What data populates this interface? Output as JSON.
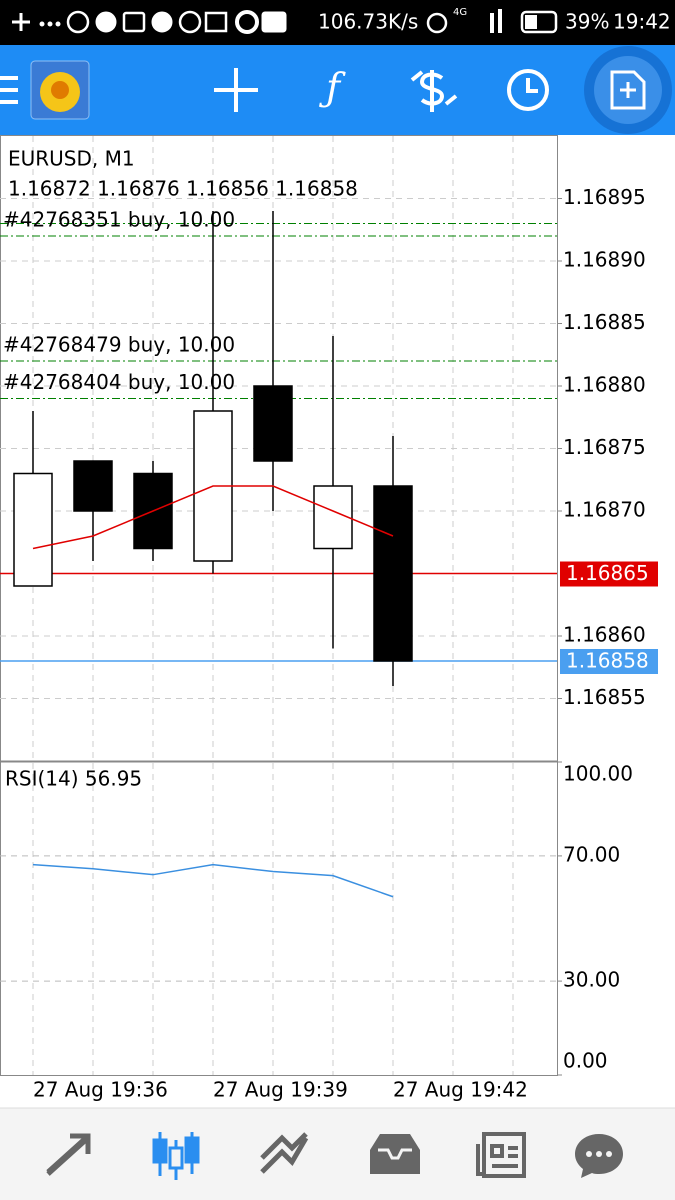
{
  "status_bar": {
    "speed": "106.73K/s",
    "network": "4G",
    "battery": "39%",
    "time": "19:42"
  },
  "chart_data": [
    {
      "type": "candlestick",
      "title": "EURUSD, M1",
      "ohlc_label": "1.16872 1.16876 1.16856 1.16858",
      "categories": [
        "27 Aug 19:36",
        null,
        null,
        "27 Aug 19:39",
        null,
        null,
        "27 Aug 19:42"
      ],
      "open": [
        1.16864,
        1.16874,
        1.16873,
        1.16866,
        1.1688,
        1.16867,
        1.16872
      ],
      "high": [
        1.16878,
        1.16874,
        1.16874,
        1.16894,
        1.16894,
        1.16884,
        1.16876
      ],
      "low": [
        1.16864,
        1.16866,
        1.16866,
        1.16865,
        1.1687,
        1.16859,
        1.16856
      ],
      "close": [
        1.16873,
        1.1687,
        1.16867,
        1.16878,
        1.16874,
        1.16872,
        1.16858
      ],
      "ma": {
        "color": "#e00000",
        "values": [
          1.16867,
          1.16868,
          1.1687,
          1.16872,
          1.16872,
          1.1687,
          1.16868
        ]
      },
      "ylim": [
        1.1685,
        1.169
      ],
      "yticks": [
        1.16895,
        {
          "value": 1.1689,
          "label": "1.16890"
        },
        1.16885,
        {
          "value": 1.1688,
          "label": "1.16880"
        },
        1.16875,
        {
          "value": 1.1687,
          "label": "1.16870"
        },
        {
          "value": 1.1686,
          "label": "1.16860"
        },
        1.16855
      ],
      "ask_price": 1.16865,
      "ask_color": "#e00000",
      "bid_price": 1.16858,
      "bid_color": "#4a9ff0",
      "order_color": "#008000",
      "orders": [
        {
          "price": 1.16893,
          "label": null
        },
        {
          "price": 1.16892,
          "label": "#42768351 buy, 10.00"
        },
        {
          "price": 1.16882,
          "label": "#42768479 buy, 10.00"
        },
        {
          "price": 1.16879,
          "label": "#42768404 buy, 10.00"
        }
      ],
      "grid": true
    },
    {
      "type": "line",
      "title": "RSI(14) 56.95",
      "color": "#3a8fe0",
      "values": [
        67.2,
        65.9,
        64.0,
        67.2,
        65.0,
        63.7,
        56.95
      ],
      "ylim": [
        0,
        100
      ],
      "yticks": [
        {
          "value": 100,
          "label": "100.00"
        },
        {
          "value": 70,
          "label": "70.00"
        },
        {
          "value": 30,
          "label": "30.00"
        },
        {
          "value": 0,
          "label": "0.00"
        }
      ],
      "grid": true
    }
  ]
}
